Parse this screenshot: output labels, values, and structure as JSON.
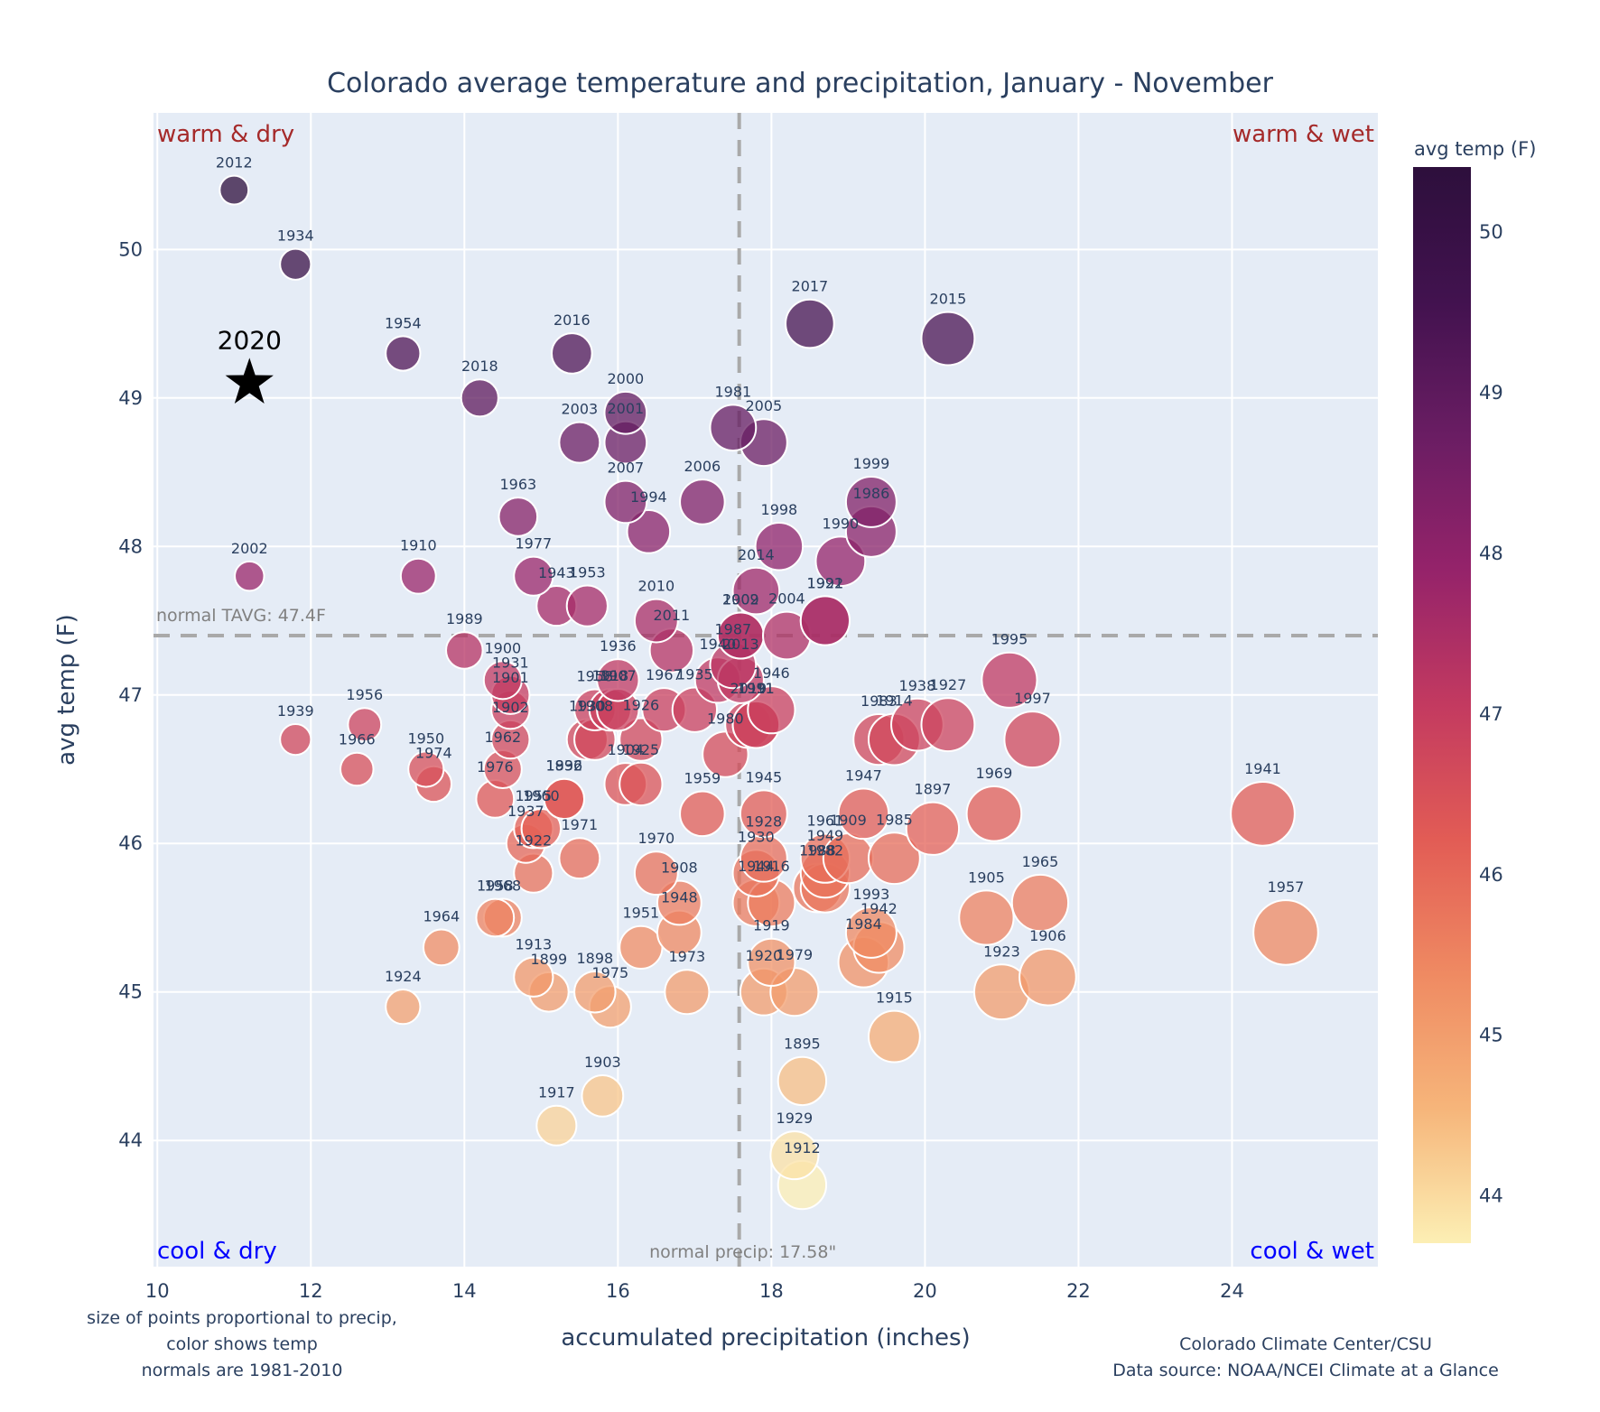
{
  "chart_data": {
    "type": "scatter",
    "title": "Colorado average temperature and precipitation, January - November",
    "xlabel": "accumulated precipitation (inches)",
    "ylabel": "avg temp (F)",
    "xlim": [
      9.95,
      25.9
    ],
    "ylim": [
      43.15,
      50.92
    ],
    "xticks": [
      10,
      12,
      14,
      16,
      18,
      20,
      22,
      24
    ],
    "yticks": [
      44,
      45,
      46,
      47,
      48,
      49,
      50
    ],
    "grid": true,
    "marker_size_encodes": "precipitation",
    "marker_color_encodes": "avg temp",
    "colorbar": {
      "title": "avg temp (F)",
      "range": [
        43.7,
        50.4
      ],
      "ticks": [
        44,
        45,
        46,
        47,
        48,
        49,
        50
      ],
      "colorscale": [
        "#fcefb4",
        "#f6b57a",
        "#ef8a62",
        "#e25c55",
        "#c33a60",
        "#95236a",
        "#6a1d63",
        "#42124f",
        "#2d0f3c"
      ]
    },
    "reference_lines": {
      "normal_precip": 17.58,
      "normal_precip_label": "normal precip: 17.58\"",
      "normal_temp": 47.4,
      "normal_temp_label": "normal TAVG: 47.4F"
    },
    "quadrant_labels": {
      "top_left": "warm & dry",
      "top_right": "warm & wet",
      "bottom_left": "cool & dry",
      "bottom_right": "cool & wet"
    },
    "highlight": {
      "label": "2020",
      "precip": 11.2,
      "temp": 49.1
    },
    "points": [
      {
        "year": "2012",
        "precip": 11.0,
        "temp": 50.4
      },
      {
        "year": "1934",
        "precip": 11.8,
        "temp": 49.9
      },
      {
        "year": "1954",
        "precip": 13.2,
        "temp": 49.3
      },
      {
        "year": "2018",
        "precip": 14.2,
        "temp": 49.0
      },
      {
        "year": "2016",
        "precip": 15.4,
        "temp": 49.3
      },
      {
        "year": "2017",
        "precip": 18.5,
        "temp": 49.5
      },
      {
        "year": "2015",
        "precip": 20.3,
        "temp": 49.4
      },
      {
        "year": "2000",
        "precip": 16.1,
        "temp": 48.9
      },
      {
        "year": "2001",
        "precip": 16.1,
        "temp": 48.7
      },
      {
        "year": "2003",
        "precip": 15.5,
        "temp": 48.7
      },
      {
        "year": "1981",
        "precip": 17.5,
        "temp": 48.8
      },
      {
        "year": "2005",
        "precip": 17.9,
        "temp": 48.7
      },
      {
        "year": "2007",
        "precip": 16.1,
        "temp": 48.3
      },
      {
        "year": "1994",
        "precip": 16.4,
        "temp": 48.1
      },
      {
        "year": "2006",
        "precip": 17.1,
        "temp": 48.3
      },
      {
        "year": "1999",
        "precip": 19.3,
        "temp": 48.3
      },
      {
        "year": "1986",
        "precip": 19.3,
        "temp": 48.1
      },
      {
        "year": "1963",
        "precip": 14.7,
        "temp": 48.2
      },
      {
        "year": "1998",
        "precip": 18.1,
        "temp": 48.0
      },
      {
        "year": "1990",
        "precip": 18.9,
        "temp": 47.9
      },
      {
        "year": "2002",
        "precip": 11.2,
        "temp": 47.8
      },
      {
        "year": "1910",
        "precip": 13.4,
        "temp": 47.8
      },
      {
        "year": "1977",
        "precip": 14.9,
        "temp": 47.8
      },
      {
        "year": "2014",
        "precip": 17.8,
        "temp": 47.7
      },
      {
        "year": "1943",
        "precip": 15.2,
        "temp": 47.6
      },
      {
        "year": "1953",
        "precip": 15.6,
        "temp": 47.6
      },
      {
        "year": "2010",
        "precip": 16.5,
        "temp": 47.5
      },
      {
        "year": "1992",
        "precip": 18.7,
        "temp": 47.5
      },
      {
        "year": "1921",
        "precip": 18.7,
        "temp": 47.5
      },
      {
        "year": "2009",
        "precip": 17.6,
        "temp": 47.4
      },
      {
        "year": "1902b",
        "precip": 17.6,
        "temp": 47.4
      },
      {
        "year": "2004",
        "precip": 18.2,
        "temp": 47.4
      },
      {
        "year": "1989",
        "precip": 14.0,
        "temp": 47.3
      },
      {
        "year": "2011",
        "precip": 16.7,
        "temp": 47.3
      },
      {
        "year": "1987",
        "precip": 17.5,
        "temp": 47.2
      },
      {
        "year": "1940",
        "precip": 17.3,
        "temp": 47.1
      },
      {
        "year": "1900",
        "precip": 14.5,
        "temp": 47.1
      },
      {
        "year": "1936",
        "precip": 16.0,
        "temp": 47.1
      },
      {
        "year": "2013",
        "precip": 17.6,
        "temp": 47.1
      },
      {
        "year": "1995",
        "precip": 21.1,
        "temp": 47.1
      },
      {
        "year": "1931",
        "precip": 14.6,
        "temp": 47.0
      },
      {
        "year": "1901",
        "precip": 14.6,
        "temp": 46.9
      },
      {
        "year": "1958",
        "precip": 15.7,
        "temp": 46.9
      },
      {
        "year": "1918",
        "precip": 15.9,
        "temp": 46.9
      },
      {
        "year": "1907",
        "precip": 16.0,
        "temp": 46.9
      },
      {
        "year": "1967",
        "precip": 16.6,
        "temp": 46.9
      },
      {
        "year": "1935",
        "precip": 17.0,
        "temp": 46.9
      },
      {
        "year": "1946",
        "precip": 18.0,
        "temp": 46.9
      },
      {
        "year": "2019",
        "precip": 17.7,
        "temp": 46.8
      },
      {
        "year": "1991",
        "precip": 17.8,
        "temp": 46.8
      },
      {
        "year": "1911",
        "precip": 17.8,
        "temp": 46.8
      },
      {
        "year": "1938",
        "precip": 19.9,
        "temp": 46.8
      },
      {
        "year": "1927",
        "precip": 20.3,
        "temp": 46.8
      },
      {
        "year": "1902",
        "precip": 14.6,
        "temp": 46.7
      },
      {
        "year": "1939",
        "precip": 11.8,
        "temp": 46.7
      },
      {
        "year": "1956",
        "precip": 12.7,
        "temp": 46.8
      },
      {
        "year": "1930b",
        "precip": 15.6,
        "temp": 46.7
      },
      {
        "year": "1908b",
        "precip": 15.7,
        "temp": 46.7
      },
      {
        "year": "1926",
        "precip": 16.3,
        "temp": 46.7
      },
      {
        "year": "1983",
        "precip": 19.4,
        "temp": 46.7
      },
      {
        "year": "1914",
        "precip": 19.6,
        "temp": 46.7
      },
      {
        "year": "1997",
        "precip": 21.4,
        "temp": 46.7
      },
      {
        "year": "1980",
        "precip": 17.4,
        "temp": 46.6
      },
      {
        "year": "1962",
        "precip": 14.5,
        "temp": 46.5
      },
      {
        "year": "1966",
        "precip": 12.6,
        "temp": 46.5
      },
      {
        "year": "1950",
        "precip": 13.5,
        "temp": 46.5
      },
      {
        "year": "1974",
        "precip": 13.6,
        "temp": 46.4
      },
      {
        "year": "1904",
        "precip": 16.1,
        "temp": 46.4
      },
      {
        "year": "1925",
        "precip": 16.3,
        "temp": 46.4
      },
      {
        "year": "1976",
        "precip": 14.4,
        "temp": 46.3
      },
      {
        "year": "1896",
        "precip": 15.3,
        "temp": 46.3
      },
      {
        "year": "1959",
        "precip": 17.1,
        "temp": 46.2
      },
      {
        "year": "1945",
        "precip": 17.9,
        "temp": 46.2
      },
      {
        "year": "1947",
        "precip": 19.2,
        "temp": 46.2
      },
      {
        "year": "1969",
        "precip": 20.9,
        "temp": 46.2
      },
      {
        "year": "1941",
        "precip": 24.4,
        "temp": 46.2
      },
      {
        "year": "1955",
        "precip": 14.9,
        "temp": 46.1
      },
      {
        "year": "1932",
        "precip": 15.3,
        "temp": 46.3
      },
      {
        "year": "1960",
        "precip": 15.0,
        "temp": 46.1
      },
      {
        "year": "1897",
        "precip": 20.1,
        "temp": 46.1
      },
      {
        "year": "1937",
        "precip": 14.8,
        "temp": 46.0
      },
      {
        "year": "1971",
        "precip": 15.5,
        "temp": 45.9
      },
      {
        "year": "1928",
        "precip": 17.9,
        "temp": 45.9
      },
      {
        "year": "1961",
        "precip": 18.7,
        "temp": 45.9
      },
      {
        "year": "1909",
        "precip": 19.0,
        "temp": 45.9
      },
      {
        "year": "1985",
        "precip": 19.6,
        "temp": 45.9
      },
      {
        "year": "1922",
        "precip": 14.9,
        "temp": 45.8
      },
      {
        "year": "1970",
        "precip": 16.5,
        "temp": 45.8
      },
      {
        "year": "1930",
        "precip": 17.8,
        "temp": 45.8
      },
      {
        "year": "1949",
        "precip": 18.7,
        "temp": 45.8
      },
      {
        "year": "1988",
        "precip": 18.6,
        "temp": 45.7
      },
      {
        "year": "1982",
        "precip": 18.7,
        "temp": 45.7
      },
      {
        "year": "1968",
        "precip": 14.5,
        "temp": 45.5
      },
      {
        "year": "1958b",
        "precip": 14.4,
        "temp": 45.5
      },
      {
        "year": "1908",
        "precip": 16.8,
        "temp": 45.6
      },
      {
        "year": "1944",
        "precip": 17.8,
        "temp": 45.6
      },
      {
        "year": "1916",
        "precip": 18.0,
        "temp": 45.6
      },
      {
        "year": "1965",
        "precip": 21.5,
        "temp": 45.6
      },
      {
        "year": "1948",
        "precip": 16.8,
        "temp": 45.4
      },
      {
        "year": "1905",
        "precip": 20.8,
        "temp": 45.5
      },
      {
        "year": "1993",
        "precip": 19.3,
        "temp": 45.4
      },
      {
        "year": "1942",
        "precip": 19.4,
        "temp": 45.3
      },
      {
        "year": "1957",
        "precip": 24.7,
        "temp": 45.4
      },
      {
        "year": "1951",
        "precip": 16.3,
        "temp": 45.3
      },
      {
        "year": "1964",
        "precip": 13.7,
        "temp": 45.3
      },
      {
        "year": "1984",
        "precip": 19.2,
        "temp": 45.2
      },
      {
        "year": "1919",
        "precip": 18.0,
        "temp": 45.2
      },
      {
        "year": "1913",
        "precip": 14.9,
        "temp": 45.1
      },
      {
        "year": "1906",
        "precip": 21.6,
        "temp": 45.1
      },
      {
        "year": "1899",
        "precip": 15.1,
        "temp": 45.0
      },
      {
        "year": "1898",
        "precip": 15.7,
        "temp": 45.0
      },
      {
        "year": "1973",
        "precip": 16.9,
        "temp": 45.0
      },
      {
        "year": "1920",
        "precip": 17.9,
        "temp": 45.0
      },
      {
        "year": "1979",
        "precip": 18.3,
        "temp": 45.0
      },
      {
        "year": "1923",
        "precip": 21.0,
        "temp": 45.0
      },
      {
        "year": "1924",
        "precip": 13.2,
        "temp": 44.9
      },
      {
        "year": "1975",
        "precip": 15.9,
        "temp": 44.9
      },
      {
        "year": "1915",
        "precip": 19.6,
        "temp": 44.7
      },
      {
        "year": "1895",
        "precip": 18.4,
        "temp": 44.4
      },
      {
        "year": "1903",
        "precip": 15.8,
        "temp": 44.3
      },
      {
        "year": "1917",
        "precip": 15.2,
        "temp": 44.1
      },
      {
        "year": "1929",
        "precip": 18.3,
        "temp": 43.9
      },
      {
        "year": "1912",
        "precip": 18.4,
        "temp": 43.7
      }
    ]
  },
  "footnotes": {
    "left": [
      "size of points proportional to precip,",
      "color shows temp",
      "normals are 1981-2010"
    ],
    "right": [
      "Colorado Climate Center/CSU",
      "Data source: NOAA/NCEI Climate at a Glance"
    ]
  }
}
